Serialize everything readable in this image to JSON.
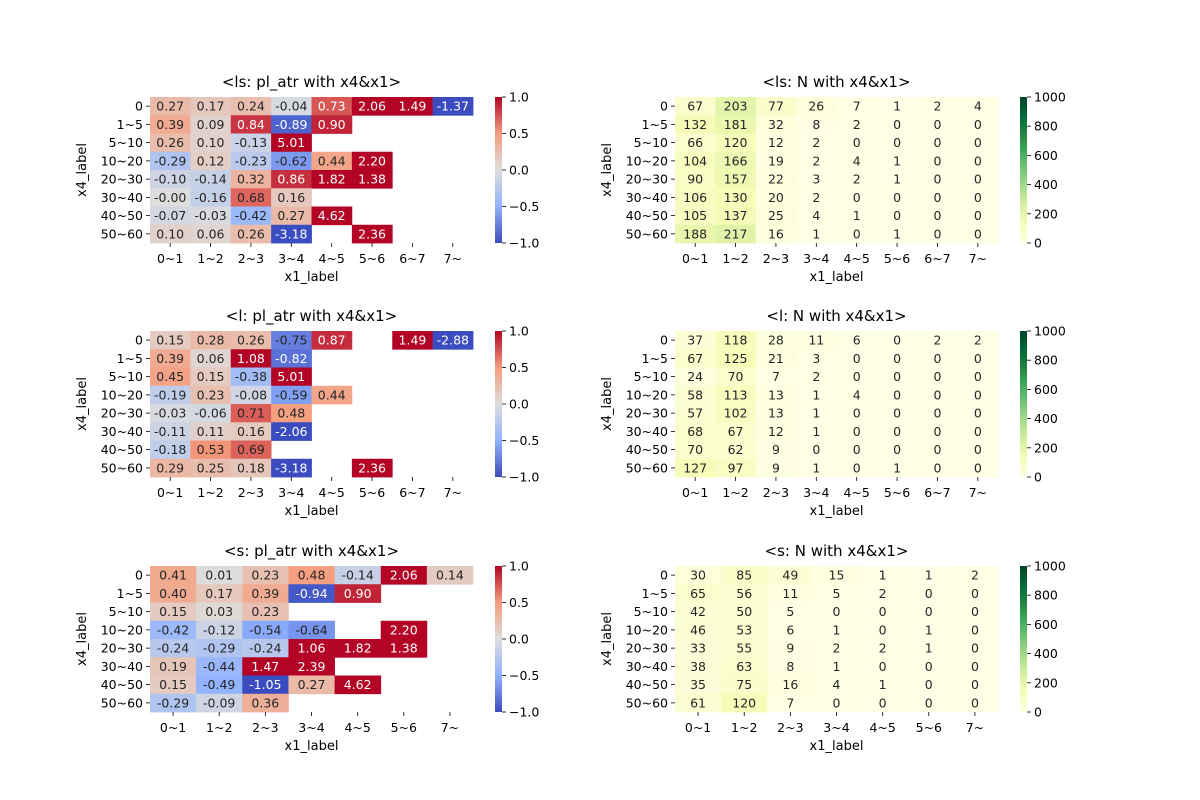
{
  "figure": {
    "background": "#ffffff"
  },
  "chart_data": [
    {
      "type": "heatmap",
      "colormap": "coolwarm",
      "vmin": -1.0,
      "vmax": 1.0,
      "title": "<ls: pl_atr with x4&x1>",
      "xlabel": "x1_label",
      "ylabel": "x4_label",
      "x_categories": [
        "0~1",
        "1~2",
        "2~3",
        "3~4",
        "4~5",
        "5~6",
        "6~7",
        "7~"
      ],
      "y_categories": [
        "0",
        "1~5",
        "5~10",
        "10~20",
        "20~30",
        "30~40",
        "40~50",
        "50~60"
      ],
      "colorbar_ticks": [
        "1.0",
        "0.5",
        "0.0",
        "−0.5",
        "−1.0"
      ],
      "values": [
        [
          0.27,
          0.17,
          0.24,
          -0.04,
          0.73,
          2.06,
          1.49,
          -1.37
        ],
        [
          0.39,
          0.09,
          0.84,
          -0.89,
          0.9,
          null,
          null,
          null
        ],
        [
          0.26,
          0.1,
          -0.13,
          5.01,
          null,
          null,
          null,
          null
        ],
        [
          -0.29,
          0.12,
          -0.23,
          -0.62,
          0.44,
          2.2,
          null,
          null
        ],
        [
          -0.1,
          -0.14,
          0.32,
          0.86,
          1.82,
          1.38,
          null,
          null
        ],
        [
          -0.0,
          -0.16,
          0.68,
          0.16,
          null,
          null,
          null,
          null
        ],
        [
          -0.07,
          -0.03,
          -0.42,
          0.27,
          4.62,
          null,
          null,
          null
        ],
        [
          0.1,
          0.06,
          0.26,
          -3.18,
          null,
          2.36,
          null,
          null
        ]
      ],
      "labels": [
        [
          "0.27",
          "0.17",
          "0.24",
          "-0.04",
          "0.73",
          "2.06",
          "1.49",
          "-1.37"
        ],
        [
          "0.39",
          "0.09",
          "0.84",
          "-0.89",
          "0.90",
          "",
          "",
          ""
        ],
        [
          "0.26",
          "0.10",
          "-0.13",
          "5.01",
          "",
          "",
          "",
          ""
        ],
        [
          "-0.29",
          "0.12",
          "-0.23",
          "-0.62",
          "0.44",
          "2.20",
          "",
          ""
        ],
        [
          "-0.10",
          "-0.14",
          "0.32",
          "0.86",
          "1.82",
          "1.38",
          "",
          ""
        ],
        [
          "-0.00",
          "-0.16",
          "0.68",
          "0.16",
          "",
          "",
          "",
          ""
        ],
        [
          "-0.07",
          "-0.03",
          "-0.42",
          "0.27",
          "4.62",
          "",
          "",
          ""
        ],
        [
          "0.10",
          "0.06",
          "0.26",
          "-3.18",
          "",
          "2.36",
          "",
          ""
        ]
      ]
    },
    {
      "type": "heatmap",
      "colormap": "YlGn",
      "vmin": 0,
      "vmax": 1000,
      "title": "<ls: N with x4&x1>",
      "xlabel": "x1_label",
      "ylabel": "x4_label",
      "x_categories": [
        "0~1",
        "1~2",
        "2~3",
        "3~4",
        "4~5",
        "5~6",
        "6~7",
        "7~"
      ],
      "y_categories": [
        "0",
        "1~5",
        "5~10",
        "10~20",
        "20~30",
        "30~40",
        "40~50",
        "50~60"
      ],
      "colorbar_ticks": [
        "1000",
        "800",
        "600",
        "400",
        "200",
        "0"
      ],
      "values": [
        [
          67,
          203,
          77,
          26,
          7,
          1,
          2,
          4
        ],
        [
          132,
          181,
          32,
          8,
          2,
          0,
          0,
          0
        ],
        [
          66,
          120,
          12,
          2,
          0,
          0,
          0,
          0
        ],
        [
          104,
          166,
          19,
          2,
          4,
          1,
          0,
          0
        ],
        [
          90,
          157,
          22,
          3,
          2,
          1,
          0,
          0
        ],
        [
          106,
          130,
          20,
          2,
          0,
          0,
          0,
          0
        ],
        [
          105,
          137,
          25,
          4,
          1,
          0,
          0,
          0
        ],
        [
          188,
          217,
          16,
          1,
          0,
          1,
          0,
          0
        ]
      ],
      "labels": [
        [
          "67",
          "203",
          "77",
          "26",
          "7",
          "1",
          "2",
          "4"
        ],
        [
          "132",
          "181",
          "32",
          "8",
          "2",
          "0",
          "0",
          "0"
        ],
        [
          "66",
          "120",
          "12",
          "2",
          "0",
          "0",
          "0",
          "0"
        ],
        [
          "104",
          "166",
          "19",
          "2",
          "4",
          "1",
          "0",
          "0"
        ],
        [
          "90",
          "157",
          "22",
          "3",
          "2",
          "1",
          "0",
          "0"
        ],
        [
          "106",
          "130",
          "20",
          "2",
          "0",
          "0",
          "0",
          "0"
        ],
        [
          "105",
          "137",
          "25",
          "4",
          "1",
          "0",
          "0",
          "0"
        ],
        [
          "188",
          "217",
          "16",
          "1",
          "0",
          "1",
          "0",
          "0"
        ]
      ]
    },
    {
      "type": "heatmap",
      "colormap": "coolwarm",
      "vmin": -1.0,
      "vmax": 1.0,
      "title": "<l: pl_atr with x4&x1>",
      "xlabel": "x1_label",
      "ylabel": "x4_label",
      "x_categories": [
        "0~1",
        "1~2",
        "2~3",
        "3~4",
        "4~5",
        "5~6",
        "6~7",
        "7~"
      ],
      "y_categories": [
        "0",
        "1~5",
        "5~10",
        "10~20",
        "20~30",
        "30~40",
        "40~50",
        "50~60"
      ],
      "colorbar_ticks": [
        "1.0",
        "0.5",
        "0.0",
        "−0.5",
        "−1.0"
      ],
      "values": [
        [
          0.15,
          0.28,
          0.26,
          -0.75,
          0.87,
          null,
          1.49,
          -2.88
        ],
        [
          0.39,
          0.06,
          1.08,
          -0.82,
          null,
          null,
          null,
          null
        ],
        [
          0.45,
          0.15,
          -0.38,
          5.01,
          null,
          null,
          null,
          null
        ],
        [
          -0.19,
          0.23,
          -0.08,
          -0.59,
          0.44,
          null,
          null,
          null
        ],
        [
          -0.03,
          -0.06,
          0.71,
          0.48,
          null,
          null,
          null,
          null
        ],
        [
          -0.11,
          0.11,
          0.16,
          -2.06,
          null,
          null,
          null,
          null
        ],
        [
          -0.18,
          0.53,
          0.69,
          null,
          null,
          null,
          null,
          null
        ],
        [
          0.29,
          0.25,
          0.18,
          -3.18,
          null,
          2.36,
          null,
          null
        ]
      ],
      "labels": [
        [
          "0.15",
          "0.28",
          "0.26",
          "-0.75",
          "0.87",
          "",
          "1.49",
          "-2.88"
        ],
        [
          "0.39",
          "0.06",
          "1.08",
          "-0.82",
          "",
          "",
          "",
          ""
        ],
        [
          "0.45",
          "0.15",
          "-0.38",
          "5.01",
          "",
          "",
          "",
          ""
        ],
        [
          "-0.19",
          "0.23",
          "-0.08",
          "-0.59",
          "0.44",
          "",
          "",
          ""
        ],
        [
          "-0.03",
          "-0.06",
          "0.71",
          "0.48",
          "",
          "",
          "",
          ""
        ],
        [
          "-0.11",
          "0.11",
          "0.16",
          "-2.06",
          "",
          "",
          "",
          ""
        ],
        [
          "-0.18",
          "0.53",
          "0.69",
          "",
          "",
          "",
          "",
          ""
        ],
        [
          "0.29",
          "0.25",
          "0.18",
          "-3.18",
          "",
          "2.36",
          "",
          ""
        ]
      ]
    },
    {
      "type": "heatmap",
      "colormap": "YlGn",
      "vmin": 0,
      "vmax": 1000,
      "title": "<l: N with x4&x1>",
      "xlabel": "x1_label",
      "ylabel": "x4_label",
      "x_categories": [
        "0~1",
        "1~2",
        "2~3",
        "3~4",
        "4~5",
        "5~6",
        "6~7",
        "7~"
      ],
      "y_categories": [
        "0",
        "1~5",
        "5~10",
        "10~20",
        "20~30",
        "30~40",
        "40~50",
        "50~60"
      ],
      "colorbar_ticks": [
        "1000",
        "800",
        "600",
        "400",
        "200",
        "0"
      ],
      "values": [
        [
          37,
          118,
          28,
          11,
          6,
          0,
          2,
          2
        ],
        [
          67,
          125,
          21,
          3,
          0,
          0,
          0,
          0
        ],
        [
          24,
          70,
          7,
          2,
          0,
          0,
          0,
          0
        ],
        [
          58,
          113,
          13,
          1,
          4,
          0,
          0,
          0
        ],
        [
          57,
          102,
          13,
          1,
          0,
          0,
          0,
          0
        ],
        [
          68,
          67,
          12,
          1,
          0,
          0,
          0,
          0
        ],
        [
          70,
          62,
          9,
          0,
          0,
          0,
          0,
          0
        ],
        [
          127,
          97,
          9,
          1,
          0,
          1,
          0,
          0
        ]
      ],
      "labels": [
        [
          "37",
          "118",
          "28",
          "11",
          "6",
          "0",
          "2",
          "2"
        ],
        [
          "67",
          "125",
          "21",
          "3",
          "0",
          "0",
          "0",
          "0"
        ],
        [
          "24",
          "70",
          "7",
          "2",
          "0",
          "0",
          "0",
          "0"
        ],
        [
          "58",
          "113",
          "13",
          "1",
          "4",
          "0",
          "0",
          "0"
        ],
        [
          "57",
          "102",
          "13",
          "1",
          "0",
          "0",
          "0",
          "0"
        ],
        [
          "68",
          "67",
          "12",
          "1",
          "0",
          "0",
          "0",
          "0"
        ],
        [
          "70",
          "62",
          "9",
          "0",
          "0",
          "0",
          "0",
          "0"
        ],
        [
          "127",
          "97",
          "9",
          "1",
          "0",
          "1",
          "0",
          "0"
        ]
      ]
    },
    {
      "type": "heatmap",
      "colormap": "coolwarm",
      "vmin": -1.0,
      "vmax": 1.0,
      "title": "<s: pl_atr with x4&x1>",
      "xlabel": "x1_label",
      "ylabel": "x4_label",
      "x_categories": [
        "0~1",
        "1~2",
        "2~3",
        "3~4",
        "4~5",
        "5~6",
        "7~"
      ],
      "y_categories": [
        "0",
        "1~5",
        "5~10",
        "10~20",
        "20~30",
        "30~40",
        "40~50",
        "50~60"
      ],
      "colorbar_ticks": [
        "1.0",
        "0.5",
        "0.0",
        "−0.5",
        "−1.0"
      ],
      "values": [
        [
          0.41,
          0.01,
          0.23,
          0.48,
          -0.14,
          2.06,
          0.14
        ],
        [
          0.4,
          0.17,
          0.39,
          -0.94,
          0.9,
          null,
          null
        ],
        [
          0.15,
          0.03,
          0.23,
          null,
          null,
          null,
          null
        ],
        [
          -0.42,
          -0.12,
          -0.54,
          -0.64,
          null,
          2.2,
          null
        ],
        [
          -0.24,
          -0.29,
          -0.24,
          1.06,
          1.82,
          1.38,
          null
        ],
        [
          0.19,
          -0.44,
          1.47,
          2.39,
          null,
          null,
          null
        ],
        [
          0.15,
          -0.49,
          -1.05,
          0.27,
          4.62,
          null,
          null
        ],
        [
          -0.29,
          -0.09,
          0.36,
          null,
          null,
          null,
          null
        ]
      ],
      "labels": [
        [
          "0.41",
          "0.01",
          "0.23",
          "0.48",
          "-0.14",
          "2.06",
          "0.14"
        ],
        [
          "0.40",
          "0.17",
          "0.39",
          "-0.94",
          "0.90",
          "",
          ""
        ],
        [
          "0.15",
          "0.03",
          "0.23",
          "",
          "",
          "",
          ""
        ],
        [
          "-0.42",
          "-0.12",
          "-0.54",
          "-0.64",
          "",
          "2.20",
          ""
        ],
        [
          "-0.24",
          "-0.29",
          "-0.24",
          "1.06",
          "1.82",
          "1.38",
          ""
        ],
        [
          "0.19",
          "-0.44",
          "1.47",
          "2.39",
          "",
          "",
          ""
        ],
        [
          "0.15",
          "-0.49",
          "-1.05",
          "0.27",
          "4.62",
          "",
          ""
        ],
        [
          "-0.29",
          "-0.09",
          "0.36",
          "",
          "",
          "",
          ""
        ]
      ]
    },
    {
      "type": "heatmap",
      "colormap": "YlGn",
      "vmin": 0,
      "vmax": 1000,
      "title": "<s: N with x4&x1>",
      "xlabel": "x1_label",
      "ylabel": "x4_label",
      "x_categories": [
        "0~1",
        "1~2",
        "2~3",
        "3~4",
        "4~5",
        "5~6",
        "7~"
      ],
      "y_categories": [
        "0",
        "1~5",
        "5~10",
        "10~20",
        "20~30",
        "30~40",
        "40~50",
        "50~60"
      ],
      "colorbar_ticks": [
        "1000",
        "800",
        "600",
        "400",
        "200",
        "0"
      ],
      "values": [
        [
          30,
          85,
          49,
          15,
          1,
          1,
          2
        ],
        [
          65,
          56,
          11,
          5,
          2,
          0,
          0
        ],
        [
          42,
          50,
          5,
          0,
          0,
          0,
          0
        ],
        [
          46,
          53,
          6,
          1,
          0,
          1,
          0
        ],
        [
          33,
          55,
          9,
          2,
          2,
          1,
          0
        ],
        [
          38,
          63,
          8,
          1,
          0,
          0,
          0
        ],
        [
          35,
          75,
          16,
          4,
          1,
          0,
          0
        ],
        [
          61,
          120,
          7,
          0,
          0,
          0,
          0
        ]
      ],
      "labels": [
        [
          "30",
          "85",
          "49",
          "15",
          "1",
          "1",
          "2"
        ],
        [
          "65",
          "56",
          "11",
          "5",
          "2",
          "0",
          "0"
        ],
        [
          "42",
          "50",
          "5",
          "0",
          "0",
          "0",
          "0"
        ],
        [
          "46",
          "53",
          "6",
          "1",
          "0",
          "1",
          "0"
        ],
        [
          "33",
          "55",
          "9",
          "2",
          "2",
          "1",
          "0"
        ],
        [
          "38",
          "63",
          "8",
          "1",
          "0",
          "0",
          "0"
        ],
        [
          "35",
          "75",
          "16",
          "4",
          "1",
          "0",
          "0"
        ],
        [
          "61",
          "120",
          "7",
          "0",
          "0",
          "0",
          "0"
        ]
      ]
    }
  ]
}
